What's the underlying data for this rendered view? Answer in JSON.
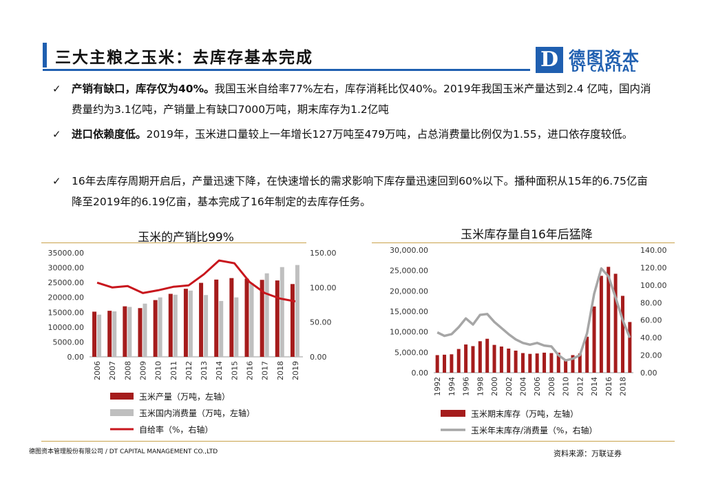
{
  "header": {
    "title": "三大主粮之玉米：去库存基本完成",
    "logo_letter": "D",
    "logo_cn": "德图资本",
    "logo_en": "DT CAPITAL"
  },
  "bullets": [
    {
      "check": "✓",
      "bold": "产销有缺口，库存仅为40%。",
      "text": "我国玉米自给率77%左右，库存消耗比仅40%。2019年我国玉米产量达到2.4 亿吨，国内消费量约为3.1亿吨，产销量上有缺口7000万吨，期末库存为1.2亿吨"
    },
    {
      "check": "✓",
      "bold": "进口依赖度低。",
      "text": "2019年，玉米进口量较上一年增长127万吨至479万吨，占总消费量比例仅为1.55，进口依存度较低。"
    },
    {
      "check": "✓",
      "bold": "",
      "text": "16年去库存周期开启后，产量迅速下降，在快速增长的需求影响下库存量迅速回到60%以下。播种面积从15年的6.75亿亩降至2019年的6.19亿亩，基本完成了16年制定的去库存任务。"
    }
  ],
  "footer": {
    "company": "德图资本管理股份有限公司 / DT CAPITAL MANAGEMENT CO.,LTD",
    "source": "资料来源：万联证券"
  },
  "chart_data": [
    {
      "type": "bar",
      "title": "玉米的产销比99%",
      "categories": [
        "2006",
        "2007",
        "2008",
        "2009",
        "2010",
        "2011",
        "2012",
        "2013",
        "2014",
        "2015",
        "2016",
        "2017",
        "2018",
        "2019"
      ],
      "y_left": {
        "min": 0,
        "max": 35000,
        "ticks": [
          "0.00",
          "5000.00",
          "10000.00",
          "15000.00",
          "20000.00",
          "25000.00",
          "30000.00",
          "35000.00"
        ]
      },
      "y_right": {
        "min": 0,
        "max": 150,
        "ticks": [
          "0.00",
          "50.00",
          "100.00",
          "150.00"
        ]
      },
      "series": [
        {
          "name": "玉米产量（万吨，左轴）",
          "kind": "bar",
          "axis": "left",
          "color": "#a51c1c",
          "values": [
            15200,
            15500,
            17000,
            16400,
            19100,
            21200,
            22900,
            24900,
            26000,
            26500,
            26300,
            25900,
            25700,
            24500
          ]
        },
        {
          "name": "玉米国内消费量（万吨，左轴）",
          "kind": "bar",
          "axis": "left",
          "color": "#bfbfbf",
          "values": [
            14200,
            15300,
            16800,
            17900,
            20000,
            20900,
            22300,
            20800,
            18800,
            20000,
            24800,
            28100,
            30200,
            30900
          ]
        },
        {
          "name": "自给率（%，右轴）",
          "kind": "line",
          "axis": "right",
          "color": "#c8161d",
          "values": [
            107,
            100,
            102,
            92,
            96,
            101,
            103,
            119,
            139,
            135,
            108,
            92,
            84,
            80
          ]
        }
      ],
      "grid": false,
      "legend": "bottom"
    },
    {
      "type": "bar",
      "title": "玉米库存量自16年后猛降",
      "categories": [
        "1992",
        "1993",
        "1994",
        "1995",
        "1996",
        "1997",
        "1998",
        "1999",
        "2000",
        "2001",
        "2002",
        "2003",
        "2004",
        "2005",
        "2006",
        "2007",
        "2008",
        "2009",
        "2010",
        "2011",
        "2012",
        "2013",
        "2014",
        "2015",
        "2016",
        "2017",
        "2018",
        "2019"
      ],
      "x_tick_labels": [
        "1992",
        "1994",
        "1996",
        "1998",
        "2000",
        "2002",
        "2004",
        "2006",
        "2008",
        "2010",
        "2012",
        "2014",
        "2016",
        "2018"
      ],
      "y_left": {
        "min": 0,
        "max": 30000,
        "ticks": [
          "0.00",
          "5,000.00",
          "10,000.00",
          "15,000.00",
          "20,000.00",
          "25,000.00",
          "30,000.00"
        ]
      },
      "y_right": {
        "min": 0,
        "max": 140,
        "ticks": [
          "0.00",
          "20.00",
          "40.00",
          "60.00",
          "80.00",
          "100.00",
          "120.00",
          "140.00"
        ]
      },
      "series": [
        {
          "name": "玉米期末库存（万吨，左轴）",
          "kind": "bar",
          "axis": "left",
          "color": "#a51c1c",
          "values": [
            4300,
            4400,
            4500,
            5800,
            6900,
            6500,
            7700,
            8300,
            6800,
            6400,
            5900,
            5400,
            4800,
            4600,
            4700,
            4900,
            4800,
            4900,
            3200,
            4300,
            4700,
            8800,
            16200,
            23700,
            25900,
            24200,
            18800,
            12400
          ]
        },
        {
          "name": "玉米年末库存/消费量（%，右轴）",
          "kind": "line",
          "axis": "right",
          "color": "#a6a6a6",
          "values": [
            46,
            42,
            44,
            52,
            62,
            55,
            66,
            67,
            58,
            51,
            44,
            38,
            34,
            32,
            34,
            31,
            30,
            20,
            14,
            16,
            20,
            45,
            90,
            119,
            110,
            86,
            60,
            40
          ]
        }
      ],
      "grid": false,
      "legend": "bottom"
    }
  ]
}
